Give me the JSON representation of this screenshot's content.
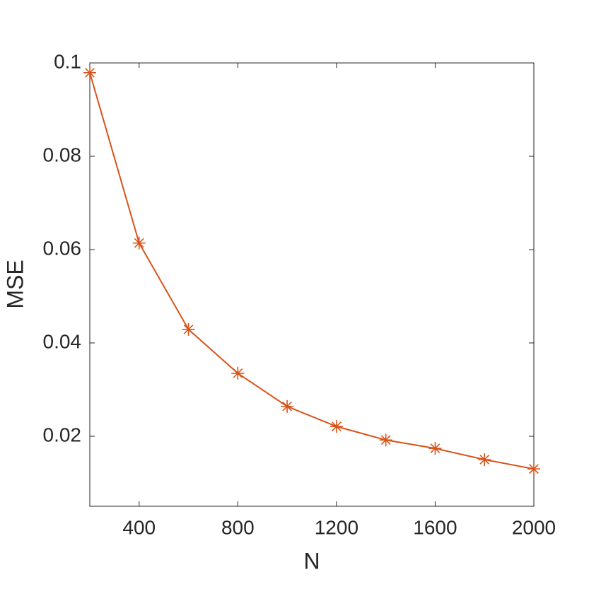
{
  "chart_data": {
    "type": "line",
    "x_label": "N",
    "y_label": "MSE",
    "x": [
      200,
      400,
      600,
      800,
      1000,
      1200,
      1400,
      1600,
      1800,
      2000
    ],
    "series": [
      {
        "color": "#d95319",
        "marker": "asterisk",
        "values": [
          0.0979,
          0.0614,
          0.0429,
          0.0335,
          0.0264,
          0.0221,
          0.0192,
          0.0174,
          0.015,
          0.013
        ]
      }
    ],
    "xlim": [
      200,
      2000
    ],
    "xticks": [
      400,
      800,
      1200,
      1600,
      2000
    ],
    "ylim": [
      0.005,
      0.1
    ],
    "yticks": [
      0.02,
      0.04,
      0.06,
      0.08,
      0.1
    ],
    "grid": false
  }
}
